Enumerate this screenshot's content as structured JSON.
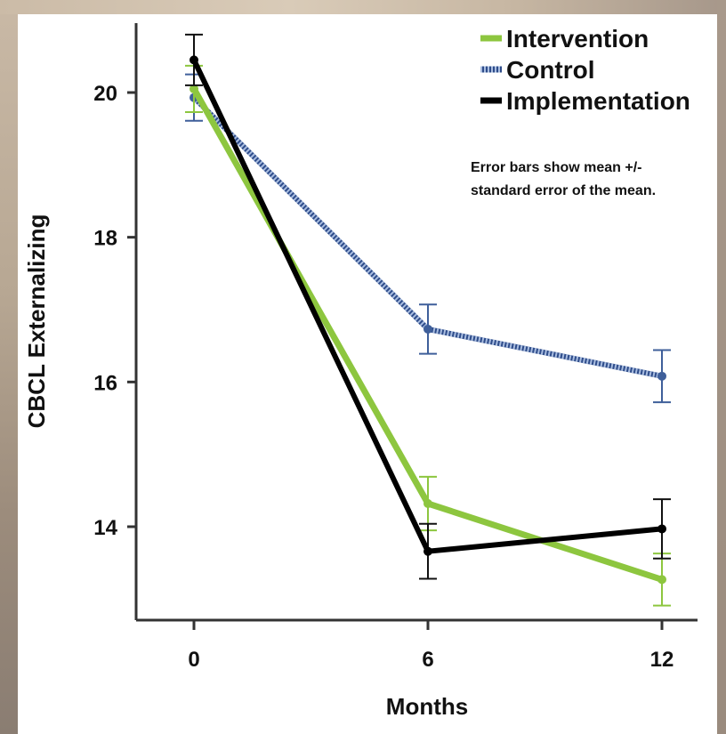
{
  "chart_data": {
    "type": "line",
    "xlabel": "Months",
    "ylabel": "CBCL Externalizing",
    "x": [
      0,
      6,
      12
    ],
    "x_tick_labels": [
      "0",
      "6",
      "12"
    ],
    "y_ticks": [
      14,
      16,
      18,
      20
    ],
    "y_tick_labels": [
      "14",
      "16",
      "18",
      "20"
    ],
    "ylim": [
      12.6,
      21.0
    ],
    "legend_position": "top-right",
    "annotation": [
      "Error bars show mean +/-",
      "standard error of the mean."
    ],
    "series": [
      {
        "name": "Intervention",
        "color": "#8dc63f",
        "style": "solid",
        "values": [
          20.05,
          14.32,
          13.27
        ],
        "error": [
          0.32,
          0.37,
          0.36
        ]
      },
      {
        "name": "Control",
        "color": "#5b7db8",
        "style": "dotted",
        "values": [
          19.93,
          16.73,
          16.08
        ],
        "error": [
          0.32,
          0.34,
          0.36
        ]
      },
      {
        "name": "Implementation",
        "color": "#000000",
        "style": "solid",
        "values": [
          20.45,
          13.66,
          13.97
        ],
        "error": [
          0.35,
          0.38,
          0.41
        ]
      }
    ]
  }
}
